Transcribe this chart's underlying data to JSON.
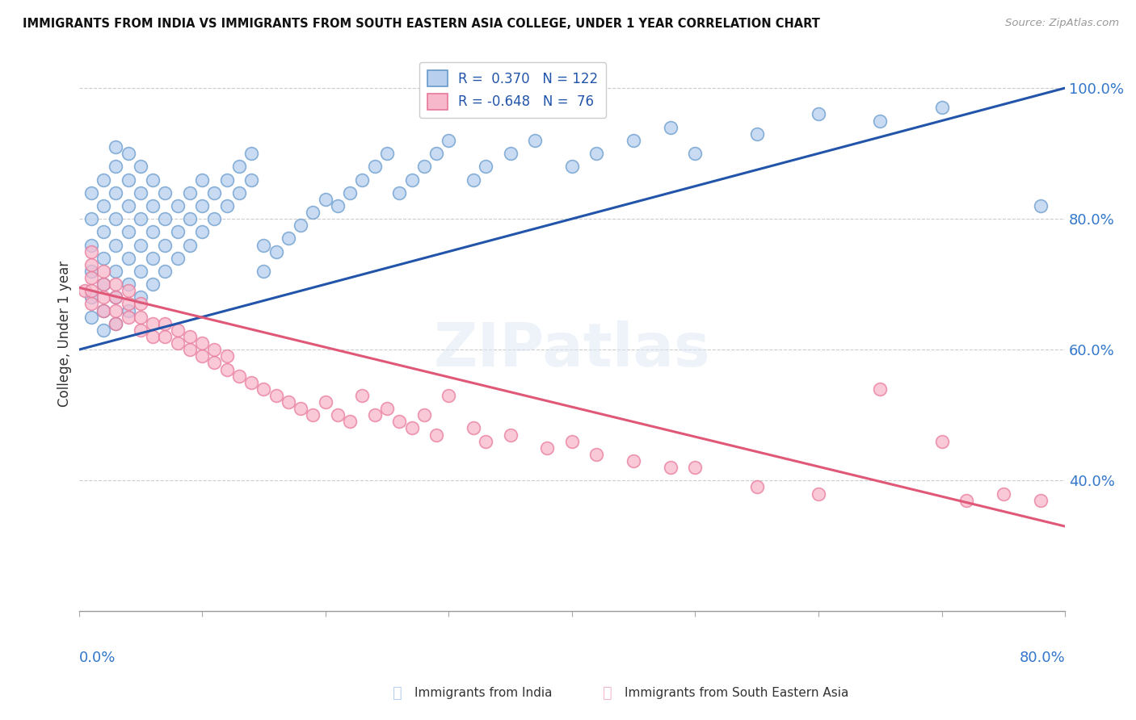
{
  "title": "IMMIGRANTS FROM INDIA VS IMMIGRANTS FROM SOUTH EASTERN ASIA COLLEGE, UNDER 1 YEAR CORRELATION CHART",
  "source": "Source: ZipAtlas.com",
  "ylabel": "College, Under 1 year",
  "xlim": [
    0.0,
    0.8
  ],
  "ylim": [
    0.2,
    1.05
  ],
  "yticks": [
    0.4,
    0.6,
    0.8,
    1.0
  ],
  "ytick_labels": [
    "40.0%",
    "60.0%",
    "80.0%",
    "100.0%"
  ],
  "blue_line": {
    "x0": 0.0,
    "y0": 0.6,
    "x1": 0.8,
    "y1": 1.0
  },
  "pink_line": {
    "x0": 0.0,
    "y0": 0.695,
    "x1": 0.8,
    "y1": 0.33
  },
  "background_color": "#ffffff",
  "scatter_blue_x": [
    0.01,
    0.01,
    0.01,
    0.01,
    0.01,
    0.01,
    0.02,
    0.02,
    0.02,
    0.02,
    0.02,
    0.02,
    0.02,
    0.03,
    0.03,
    0.03,
    0.03,
    0.03,
    0.03,
    0.03,
    0.03,
    0.04,
    0.04,
    0.04,
    0.04,
    0.04,
    0.04,
    0.04,
    0.05,
    0.05,
    0.05,
    0.05,
    0.05,
    0.05,
    0.06,
    0.06,
    0.06,
    0.06,
    0.06,
    0.07,
    0.07,
    0.07,
    0.07,
    0.08,
    0.08,
    0.08,
    0.09,
    0.09,
    0.09,
    0.1,
    0.1,
    0.1,
    0.11,
    0.11,
    0.12,
    0.12,
    0.13,
    0.13,
    0.14,
    0.14,
    0.15,
    0.15,
    0.16,
    0.17,
    0.18,
    0.19,
    0.2,
    0.21,
    0.22,
    0.23,
    0.24,
    0.25,
    0.26,
    0.27,
    0.28,
    0.29,
    0.3,
    0.32,
    0.33,
    0.35,
    0.37,
    0.4,
    0.42,
    0.45,
    0.48,
    0.5,
    0.55,
    0.6,
    0.65,
    0.7,
    0.78
  ],
  "scatter_blue_y": [
    0.65,
    0.68,
    0.72,
    0.76,
    0.8,
    0.84,
    0.63,
    0.66,
    0.7,
    0.74,
    0.78,
    0.82,
    0.86,
    0.64,
    0.68,
    0.72,
    0.76,
    0.8,
    0.84,
    0.88,
    0.91,
    0.66,
    0.7,
    0.74,
    0.78,
    0.82,
    0.86,
    0.9,
    0.68,
    0.72,
    0.76,
    0.8,
    0.84,
    0.88,
    0.7,
    0.74,
    0.78,
    0.82,
    0.86,
    0.72,
    0.76,
    0.8,
    0.84,
    0.74,
    0.78,
    0.82,
    0.76,
    0.8,
    0.84,
    0.78,
    0.82,
    0.86,
    0.8,
    0.84,
    0.82,
    0.86,
    0.84,
    0.88,
    0.86,
    0.9,
    0.72,
    0.76,
    0.75,
    0.77,
    0.79,
    0.81,
    0.83,
    0.82,
    0.84,
    0.86,
    0.88,
    0.9,
    0.84,
    0.86,
    0.88,
    0.9,
    0.92,
    0.86,
    0.88,
    0.9,
    0.92,
    0.88,
    0.9,
    0.92,
    0.94,
    0.9,
    0.93,
    0.96,
    0.95,
    0.97,
    0.82
  ],
  "scatter_pink_x": [
    0.005,
    0.01,
    0.01,
    0.01,
    0.01,
    0.01,
    0.02,
    0.02,
    0.02,
    0.02,
    0.03,
    0.03,
    0.03,
    0.03,
    0.04,
    0.04,
    0.04,
    0.05,
    0.05,
    0.05,
    0.06,
    0.06,
    0.07,
    0.07,
    0.08,
    0.08,
    0.09,
    0.09,
    0.1,
    0.1,
    0.11,
    0.11,
    0.12,
    0.12,
    0.13,
    0.14,
    0.15,
    0.16,
    0.17,
    0.18,
    0.19,
    0.2,
    0.21,
    0.22,
    0.23,
    0.24,
    0.25,
    0.26,
    0.27,
    0.28,
    0.29,
    0.3,
    0.32,
    0.33,
    0.35,
    0.38,
    0.4,
    0.42,
    0.45,
    0.48,
    0.5,
    0.55,
    0.6,
    0.65,
    0.7,
    0.72,
    0.75,
    0.78
  ],
  "scatter_pink_y": [
    0.69,
    0.67,
    0.69,
    0.71,
    0.73,
    0.75,
    0.66,
    0.68,
    0.7,
    0.72,
    0.64,
    0.66,
    0.68,
    0.7,
    0.65,
    0.67,
    0.69,
    0.63,
    0.65,
    0.67,
    0.62,
    0.64,
    0.62,
    0.64,
    0.61,
    0.63,
    0.6,
    0.62,
    0.59,
    0.61,
    0.58,
    0.6,
    0.57,
    0.59,
    0.56,
    0.55,
    0.54,
    0.53,
    0.52,
    0.51,
    0.5,
    0.52,
    0.5,
    0.49,
    0.53,
    0.5,
    0.51,
    0.49,
    0.48,
    0.5,
    0.47,
    0.53,
    0.48,
    0.46,
    0.47,
    0.45,
    0.46,
    0.44,
    0.43,
    0.42,
    0.42,
    0.39,
    0.38,
    0.54,
    0.46,
    0.37,
    0.38,
    0.37
  ]
}
